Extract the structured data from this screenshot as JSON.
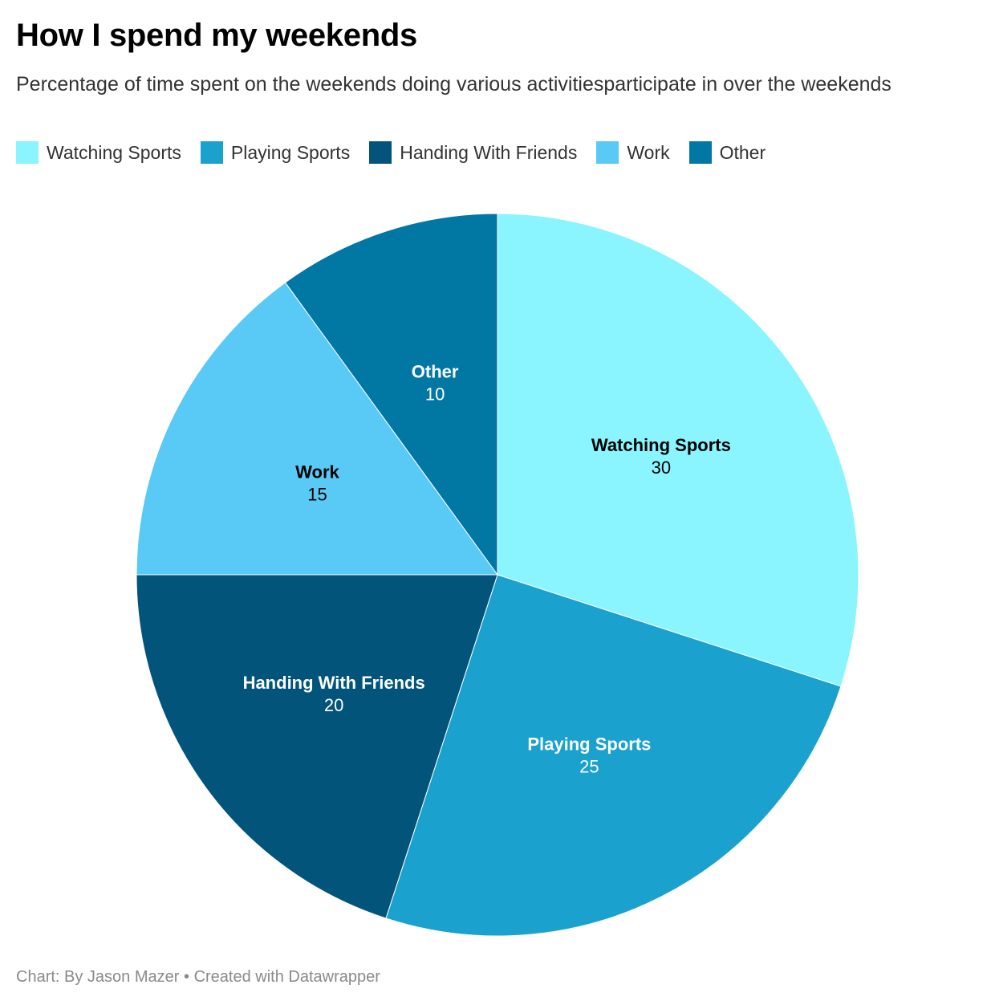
{
  "title": "How I spend my weekends",
  "subtitle": "Percentage of time spent on the weekends doing various activitiesparticipate in over the weekends",
  "footer": {
    "source_prefix": "Chart: By Jason Mazer",
    "separator": "•",
    "credit": "Created with Datawrapper"
  },
  "chart_data": {
    "type": "pie",
    "title": "How I spend my weekends",
    "subtitle": "Percentage of time spent on the weekends doing various activitiesparticipate in over the weekends",
    "legend_position": "top-left",
    "slices": [
      {
        "label": "Watching Sports",
        "value": 30,
        "color": "#8af4ff",
        "label_color": "#000000"
      },
      {
        "label": "Playing Sports",
        "value": 25,
        "color": "#1aa1ce",
        "label_color": "#ffffff"
      },
      {
        "label": "Handing With Friends",
        "value": 20,
        "color": "#02547a",
        "label_color": "#ffffff"
      },
      {
        "label": "Work",
        "value": 15,
        "color": "#59c9f6",
        "label_color": "#000000"
      },
      {
        "label": "Other",
        "value": 10,
        "color": "#0177a4",
        "label_color": "#ffffff"
      }
    ]
  }
}
